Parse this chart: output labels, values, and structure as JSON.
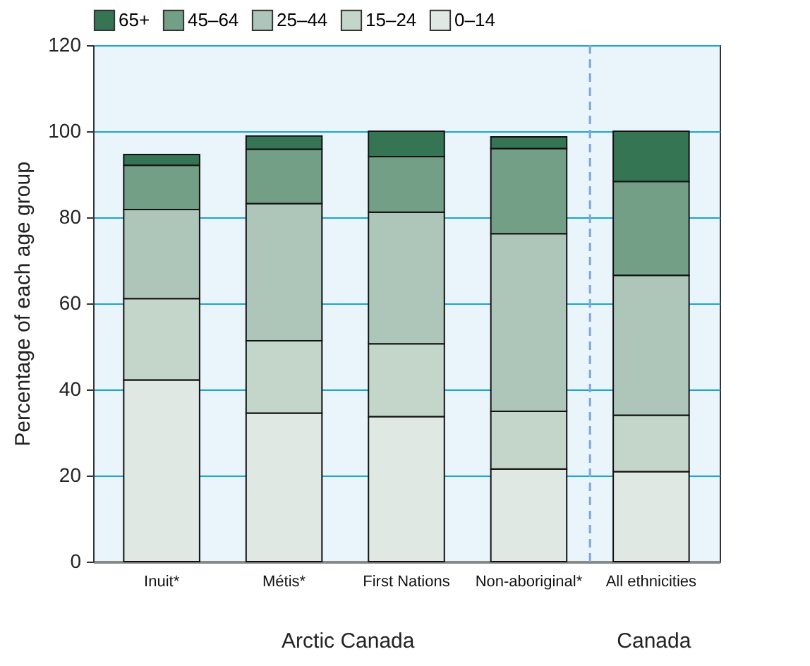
{
  "chart_data": {
    "type": "bar",
    "stacked": true,
    "ylabel": "Percentage of each age group",
    "categories": [
      "Inuit*",
      "Métis*",
      "First Nations",
      "Non-aboriginal*",
      "All ethnicities"
    ],
    "series": [
      {
        "name": "0–14",
        "color": "#dfe8e3",
        "values": [
          42.2,
          34.5,
          33.7,
          21.5,
          20.9
        ]
      },
      {
        "name": "15–24",
        "color": "#c4d5ca",
        "values": [
          18.9,
          16.8,
          16.9,
          13.4,
          13.1
        ]
      },
      {
        "name": "25–44",
        "color": "#aec6b9",
        "values": [
          20.7,
          31.9,
          30.6,
          41.3,
          32.5
        ]
      },
      {
        "name": "45–64",
        "color": "#739f87",
        "values": [
          10.3,
          12.6,
          12.9,
          19.8,
          21.8
        ]
      },
      {
        "name": "65+",
        "color": "#357554",
        "values": [
          2.5,
          3.1,
          5.9,
          2.7,
          11.7
        ]
      }
    ],
    "ylim": [
      0,
      120
    ],
    "yticks": [
      0,
      20,
      40,
      60,
      80,
      100,
      120
    ],
    "grid": "y",
    "legend": "top",
    "ref_lines": [
      {
        "axis": "x",
        "value": "All ethnicities",
        "line_style": "dashed",
        "color": "#7ea6d6"
      }
    ],
    "annotations": [
      "Arctic Canada",
      "Canada"
    ]
  }
}
